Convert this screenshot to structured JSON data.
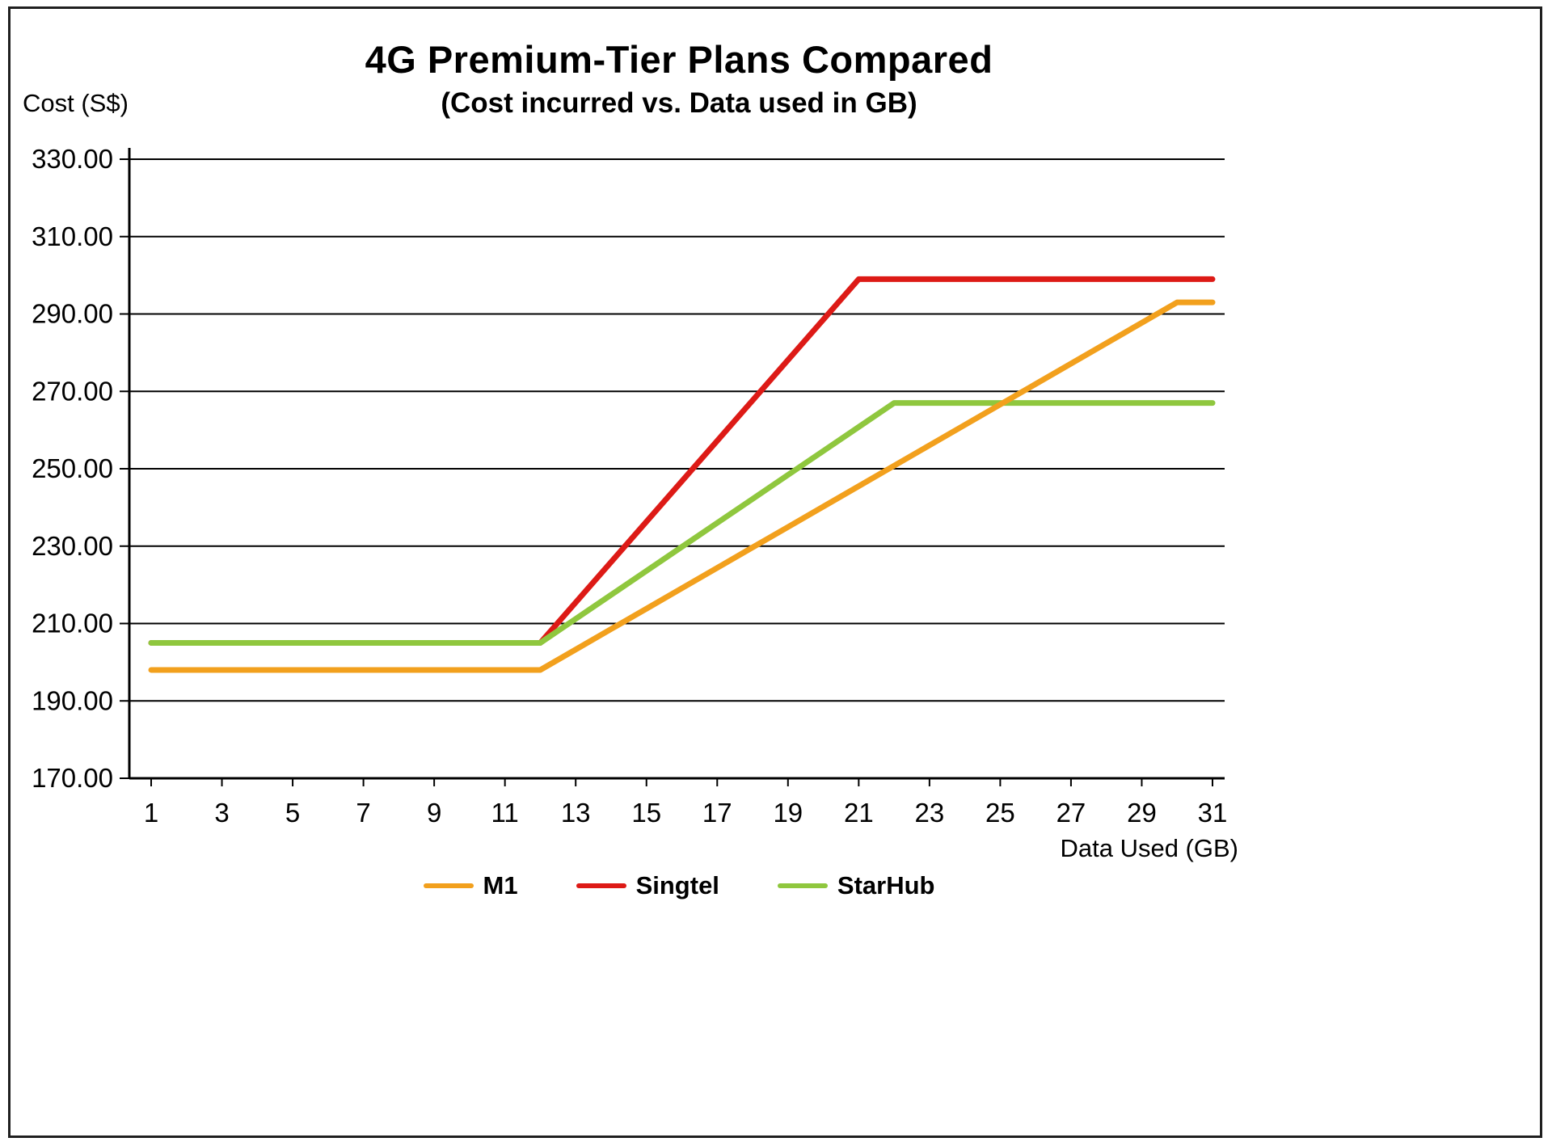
{
  "chart_data": {
    "type": "line",
    "title": "4G Premium-Tier Plans Compared",
    "subtitle": "(Cost incurred vs. Data used in GB)",
    "xlabel": "Data Used (GB)",
    "ylabel": "Cost (S$)",
    "xlim": [
      1,
      31
    ],
    "ylim": [
      170,
      330
    ],
    "grid": "horizontal",
    "legend_position": "bottom",
    "x_ticks": [
      1,
      3,
      5,
      7,
      9,
      11,
      13,
      15,
      17,
      19,
      21,
      23,
      25,
      27,
      29,
      31
    ],
    "y_ticks": [
      "330.00",
      "310.00",
      "290.00",
      "270.00",
      "250.00",
      "230.00",
      "210.00",
      "190.00",
      "170.00"
    ],
    "y_tick_values": [
      330,
      310,
      290,
      270,
      250,
      230,
      210,
      190,
      170
    ],
    "x": [
      1,
      2,
      3,
      4,
      5,
      6,
      7,
      8,
      9,
      10,
      11,
      12,
      13,
      14,
      15,
      16,
      17,
      18,
      19,
      20,
      21,
      22,
      23,
      24,
      25,
      26,
      27,
      28,
      29,
      30,
      31
    ],
    "series": [
      {
        "name": "M1",
        "color": "#F2A01D",
        "values": [
          198,
          198,
          198,
          198,
          198,
          198,
          198,
          198,
          198,
          198,
          198,
          198,
          203.28,
          208.56,
          213.83,
          219.11,
          224.39,
          229.67,
          234.94,
          240.22,
          245.5,
          250.78,
          256.06,
          261.33,
          266.61,
          271.89,
          277.17,
          282.44,
          287.72,
          293,
          293
        ]
      },
      {
        "name": "Singtel",
        "color": "#DD1A16",
        "values": [
          205,
          205,
          205,
          205,
          205,
          205,
          205,
          205,
          205,
          205,
          205,
          205,
          215.44,
          225.89,
          236.33,
          246.78,
          257.22,
          267.67,
          278.11,
          288.56,
          299,
          299,
          299,
          299,
          299,
          299,
          299,
          299,
          299,
          299,
          299
        ]
      },
      {
        "name": "StarHub",
        "color": "#8FC73E",
        "values": [
          205,
          205,
          205,
          205,
          205,
          205,
          205,
          205,
          205,
          205,
          205,
          205,
          211.2,
          217.4,
          223.6,
          229.8,
          236,
          242.2,
          248.4,
          254.6,
          260.8,
          267,
          267,
          267,
          267,
          267,
          267,
          267,
          267,
          267,
          267
        ]
      }
    ]
  }
}
